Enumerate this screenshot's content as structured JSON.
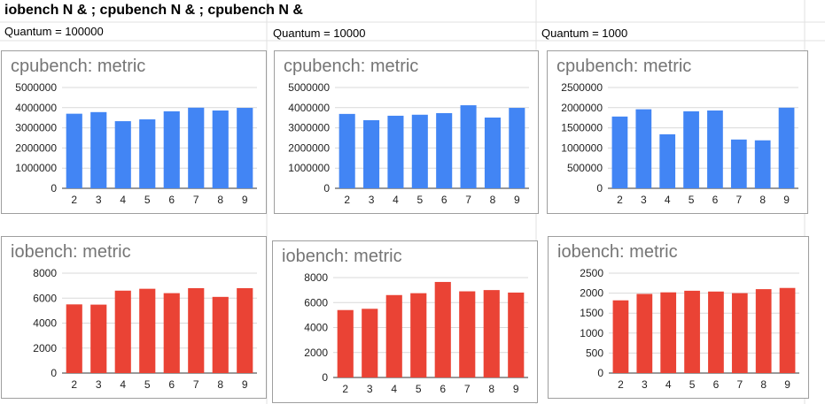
{
  "heading": "iobench N & ; cpubench N & ; cpubench N &",
  "quantum_labels": [
    "Quantum = 100000",
    "Quantum = 10000",
    "Quantum = 1000"
  ],
  "colors": {
    "cpu": "#4285f4",
    "io": "#ea4335",
    "gridline": "#d9d9d9",
    "axis": "#333333"
  },
  "chart_data": [
    {
      "type": "bar",
      "title": "cpubench: metric",
      "categories": [
        "2",
        "3",
        "4",
        "5",
        "6",
        "7",
        "8",
        "9"
      ],
      "values": [
        3700000,
        3780000,
        3330000,
        3420000,
        3820000,
        4000000,
        3860000,
        3990000
      ],
      "ylim": [
        0,
        5000000
      ],
      "yticks": [
        0,
        1000000,
        2000000,
        3000000,
        4000000,
        5000000
      ],
      "ytick_labels": [
        "0",
        "1000000",
        "2000000",
        "3000000",
        "4000000",
        "5000000"
      ]
    },
    {
      "type": "bar",
      "title": "cpubench: metric",
      "categories": [
        "2",
        "3",
        "4",
        "5",
        "6",
        "7",
        "8",
        "9"
      ],
      "values": [
        3690000,
        3380000,
        3600000,
        3650000,
        3730000,
        4120000,
        3510000,
        3990000
      ],
      "ylim": [
        0,
        5000000
      ],
      "yticks": [
        0,
        1000000,
        2000000,
        3000000,
        4000000,
        5000000
      ],
      "ytick_labels": [
        "0",
        "1000000",
        "2000000",
        "3000000",
        "4000000",
        "5000000"
      ]
    },
    {
      "type": "bar",
      "title": "cpubench: metric",
      "categories": [
        "2",
        "3",
        "4",
        "5",
        "6",
        "7",
        "8",
        "9"
      ],
      "values": [
        1780000,
        1960000,
        1340000,
        1910000,
        1930000,
        1210000,
        1190000,
        2000000
      ],
      "ylim": [
        0,
        2500000
      ],
      "yticks": [
        0,
        500000,
        1000000,
        1500000,
        2000000,
        2500000
      ],
      "ytick_labels": [
        "0",
        "500000",
        "1000000",
        "1500000",
        "2000000",
        "2500000"
      ]
    },
    {
      "type": "bar",
      "title": "iobench: metric",
      "categories": [
        "2",
        "3",
        "4",
        "5",
        "6",
        "7",
        "8",
        "9"
      ],
      "values": [
        5500,
        5480,
        6600,
        6750,
        6400,
        6800,
        6100,
        6800
      ],
      "ylim": [
        0,
        8000
      ],
      "yticks": [
        0,
        2000,
        4000,
        6000,
        8000
      ],
      "ytick_labels": [
        "0",
        "2000",
        "4000",
        "6000",
        "8000"
      ]
    },
    {
      "type": "bar",
      "title": "iobench: metric",
      "categories": [
        "2",
        "3",
        "4",
        "5",
        "6",
        "7",
        "8",
        "9"
      ],
      "values": [
        5400,
        5500,
        6600,
        6750,
        7650,
        6900,
        7000,
        6800
      ],
      "ylim": [
        0,
        8000
      ],
      "yticks": [
        0,
        2000,
        4000,
        6000,
        8000
      ],
      "ytick_labels": [
        "0",
        "2000",
        "4000",
        "6000",
        "8000"
      ]
    },
    {
      "type": "bar",
      "title": "iobench: metric",
      "categories": [
        "2",
        "3",
        "4",
        "5",
        "6",
        "7",
        "8",
        "9"
      ],
      "values": [
        1820,
        1980,
        2020,
        2060,
        2040,
        2000,
        2100,
        2130
      ],
      "ylim": [
        0,
        2500
      ],
      "yticks": [
        0,
        500,
        1000,
        1500,
        2000,
        2500
      ],
      "ytick_labels": [
        "0",
        "500",
        "1000",
        "1500",
        "2000",
        "2500"
      ]
    }
  ]
}
